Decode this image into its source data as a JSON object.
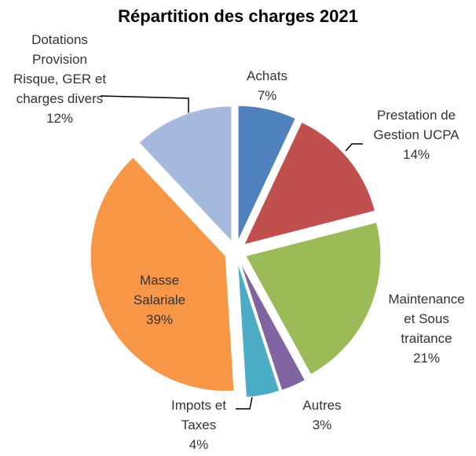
{
  "chart_data": {
    "type": "pie",
    "title": "Répartition des charges 2021",
    "categories": [
      "Achats",
      "Prestation de Gestion UCPA",
      "Maintenance et Sous traitance",
      "Autres",
      "Impots et Taxes",
      "Masse Salariale",
      "Dotations Provision Risque, GER et charges divers"
    ],
    "values": [
      7,
      14,
      21,
      3,
      4,
      39,
      12
    ],
    "value_labels": [
      "7%",
      "14%",
      "21%",
      "3%",
      "4%",
      "39%",
      "12%"
    ],
    "colors": [
      "#4f81bd",
      "#c0504d",
      "#9bbb59",
      "#8064a2",
      "#4bacc6",
      "#f79646",
      "#a5b8dd"
    ]
  }
}
